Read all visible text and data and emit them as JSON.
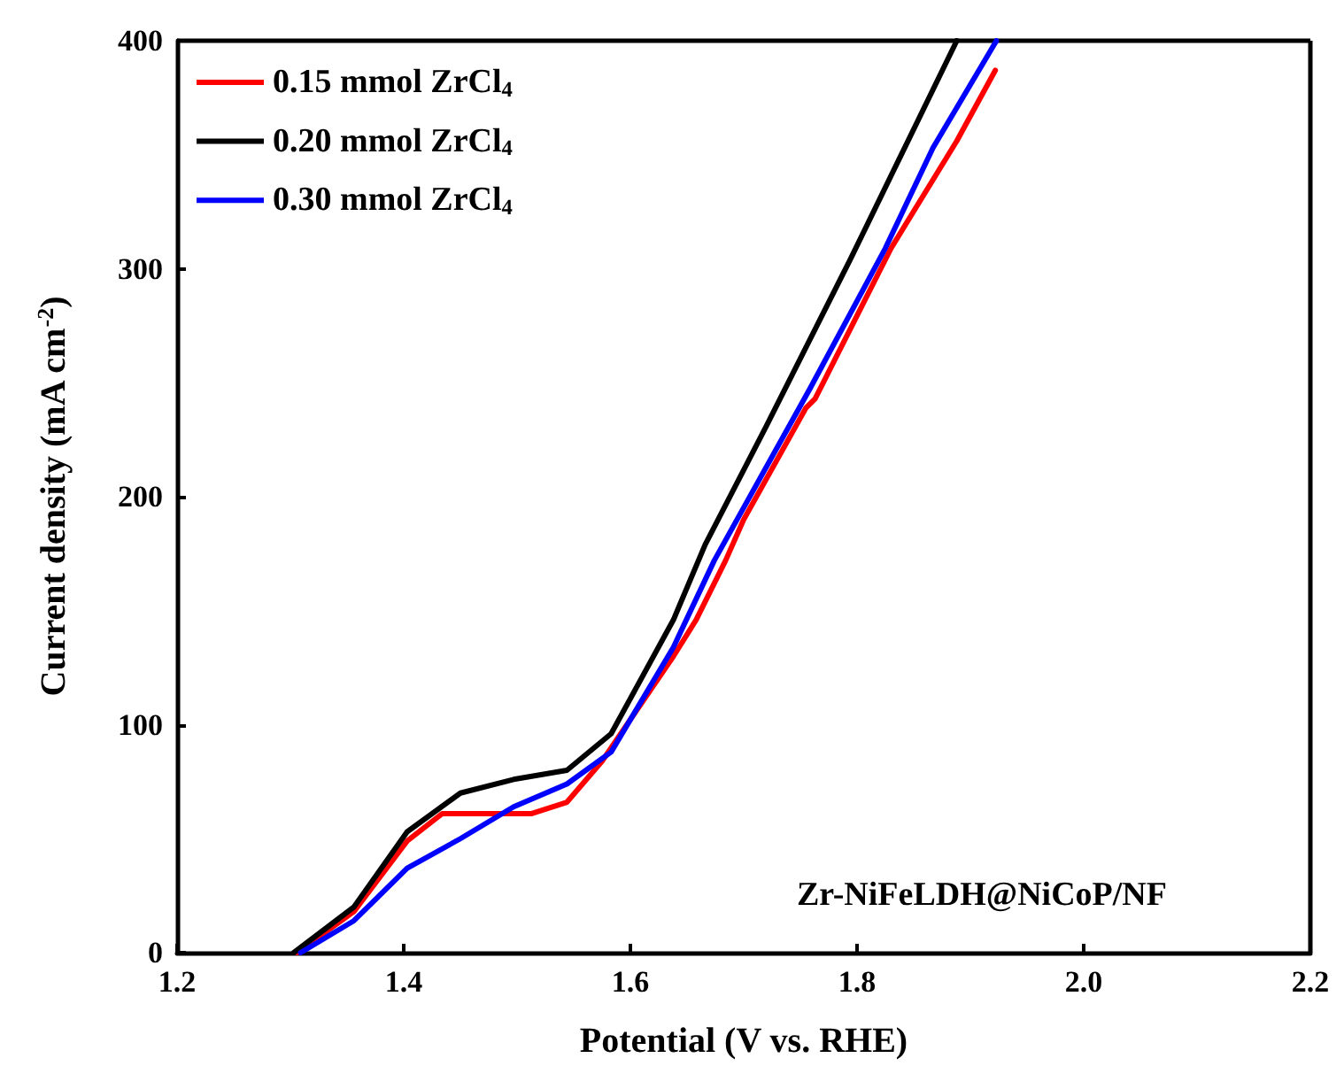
{
  "chart_data": {
    "type": "line",
    "xlabel": "Potential (V vs. RHE)",
    "ylabel": "Current density (mA cm$^{-2}$)",
    "annotations": [
      "Zr-NiFeLDH@NiCoP/NF"
    ],
    "xlim": [
      1.2,
      2.2
    ],
    "xticks": [
      1.2,
      1.4,
      1.6,
      1.8,
      {
        "value": 2,
        "label": "2.0"
      },
      2.2
    ],
    "ylim": [
      0,
      400
    ],
    "yticks": [
      0,
      100,
      200,
      300,
      400
    ],
    "grid": false,
    "legend": "top left",
    "marker": "none",
    "line_style": "solid",
    "series": [
      {
        "name": "0.15 mmol ZrCl$_{4}$",
        "color": "#ff0000",
        "x": [
          1.306,
          1.356,
          1.403,
          1.434,
          1.466,
          1.513,
          1.544,
          1.575,
          1.638,
          1.658,
          1.684,
          1.7,
          1.755,
          1.763,
          1.83,
          1.888,
          1.922
        ],
        "values": [
          0,
          18,
          49,
          61,
          61,
          61,
          66,
          84,
          130,
          146,
          172,
          190,
          239,
          243,
          309,
          356,
          387
        ]
      },
      {
        "name": "0.20 mmol ZrCl$_{4}$",
        "color": "#000000",
        "x": [
          1.303,
          1.356,
          1.403,
          1.45,
          1.497,
          1.544,
          1.583,
          1.638,
          1.666,
          1.72,
          1.794,
          1.888
        ],
        "values": [
          0,
          20,
          53,
          70,
          76,
          80,
          96,
          146,
          179,
          231,
          304,
          400
        ]
      },
      {
        "name": "0.30 mmol ZrCl$_{4}$",
        "color": "#0000ff",
        "x": [
          1.309,
          1.356,
          1.403,
          1.45,
          1.497,
          1.544,
          1.583,
          1.638,
          1.674,
          1.758,
          1.825,
          1.867,
          1.923
        ],
        "values": [
          0,
          14,
          37,
          50,
          64,
          74,
          88,
          134,
          172,
          247,
          309,
          353,
          400
        ]
      }
    ]
  }
}
